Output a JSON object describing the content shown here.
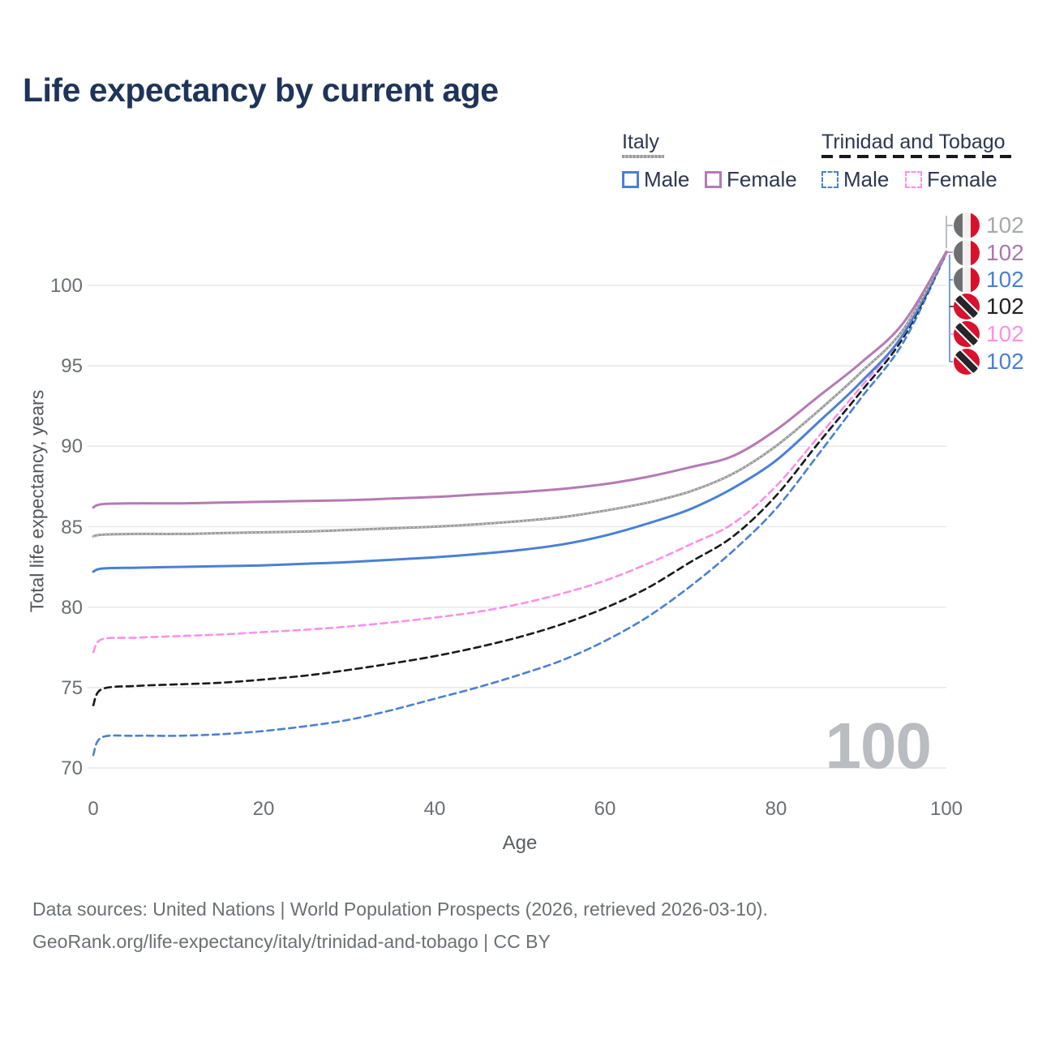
{
  "title": "Life expectancy by current age",
  "legend": {
    "groups": [
      {
        "label": "Italy",
        "line_style": "solid",
        "line_color": "#9b9b9b",
        "items": [
          {
            "label": "Male",
            "color": "#4a80d4"
          },
          {
            "label": "Female",
            "color": "#b57ab4"
          }
        ]
      },
      {
        "label": "Trinidad and Tobago",
        "line_style": "dashed",
        "line_color": "#17191c",
        "items": [
          {
            "label": "Male",
            "color": "#4a80d4"
          },
          {
            "label": "Female",
            "color": "#fc90e8"
          }
        ]
      }
    ]
  },
  "axes": {
    "y": {
      "title": "Total life expectancy, years",
      "ticks": [
        "100",
        "95",
        "90",
        "85",
        "80",
        "75",
        "70"
      ]
    },
    "x": {
      "title": "Age",
      "ticks": [
        "0",
        "20",
        "40",
        "60",
        "80",
        "100"
      ]
    }
  },
  "chart_data": {
    "type": "line",
    "title": "Life expectancy by current age",
    "xlabel": "Age",
    "ylabel": "Total life expectancy, years",
    "xlim": [
      0,
      100
    ],
    "ylim": [
      70,
      102.5
    ],
    "grid": "horizontal",
    "x": [
      0,
      1,
      5,
      10,
      15,
      20,
      25,
      30,
      35,
      40,
      45,
      50,
      55,
      60,
      65,
      70,
      75,
      80,
      85,
      90,
      95,
      100
    ],
    "series": [
      {
        "name": "Trinidad and Tobago Male",
        "country": "Trinidad and Tobago",
        "sex": "Male",
        "style": "dashed",
        "color": "#4a80d4",
        "values": [
          70.8,
          71.9,
          72.0,
          72.0,
          72.1,
          72.3,
          72.6,
          73.0,
          73.6,
          74.3,
          75.0,
          75.8,
          76.7,
          77.9,
          79.4,
          81.3,
          83.5,
          86.1,
          89.5,
          93.0,
          96.5,
          102.0
        ]
      },
      {
        "name": "Trinidad and Tobago Both sexes",
        "country": "Trinidad and Tobago",
        "sex": "Both",
        "style": "dashed",
        "color": "#17191c",
        "values": [
          73.9,
          74.9,
          75.1,
          75.2,
          75.3,
          75.5,
          75.75,
          76.1,
          76.5,
          76.95,
          77.5,
          78.15,
          78.95,
          79.95,
          81.2,
          82.8,
          84.4,
          86.9,
          90.2,
          93.4,
          96.8,
          102.0
        ]
      },
      {
        "name": "Trinidad and Tobago Female",
        "country": "Trinidad and Tobago",
        "sex": "Female",
        "style": "dashed",
        "color": "#fc90e8",
        "values": [
          77.2,
          78.0,
          78.1,
          78.2,
          78.3,
          78.45,
          78.6,
          78.8,
          79.05,
          79.35,
          79.7,
          80.2,
          80.85,
          81.65,
          82.7,
          83.9,
          85.2,
          87.5,
          90.6,
          93.7,
          97.0,
          102.0
        ]
      },
      {
        "name": "Italy Male",
        "country": "Italy",
        "sex": "Male",
        "style": "solid",
        "color": "#4a80d4",
        "values": [
          82.2,
          82.4,
          82.45,
          82.5,
          82.55,
          82.6,
          82.7,
          82.8,
          82.95,
          83.1,
          83.3,
          83.55,
          83.9,
          84.45,
          85.2,
          86.1,
          87.4,
          89.1,
          91.5,
          94.0,
          97.0,
          102.1
        ]
      },
      {
        "name": "Italy Both sexes",
        "country": "Italy",
        "sex": "Both",
        "style": "solid",
        "color": "#9b9b9b",
        "dotted_overlay": true,
        "values": [
          84.4,
          84.5,
          84.55,
          84.55,
          84.6,
          84.65,
          84.7,
          84.8,
          84.9,
          85.0,
          85.15,
          85.35,
          85.6,
          86.0,
          86.5,
          87.2,
          88.3,
          90.0,
          92.2,
          94.6,
          97.3,
          102.1
        ]
      },
      {
        "name": "Italy Female",
        "country": "Italy",
        "sex": "Female",
        "style": "solid",
        "color": "#b57ab4",
        "values": [
          86.2,
          86.4,
          86.45,
          86.45,
          86.5,
          86.55,
          86.6,
          86.65,
          86.75,
          86.85,
          87.0,
          87.15,
          87.35,
          87.65,
          88.1,
          88.7,
          89.4,
          91.0,
          93.1,
          95.2,
          97.7,
          102.1
        ]
      }
    ],
    "legend_position": "top-right",
    "annotation_end_age": 100
  },
  "end_labels": [
    {
      "flag": "italy",
      "series": "Italy Both sexes",
      "value": "102",
      "color": "#a6a8ab"
    },
    {
      "flag": "italy",
      "series": "Italy Female",
      "value": "102",
      "color": "#ad76ae"
    },
    {
      "flag": "italy",
      "series": "Italy Male",
      "value": "102",
      "color": "#4a80d4"
    },
    {
      "flag": "tt",
      "series": "Trinidad and Tobago Both sexes",
      "value": "102",
      "color": "#202124"
    },
    {
      "flag": "tt",
      "series": "Trinidad and Tobago Female",
      "value": "102",
      "color": "#fc90e8"
    },
    {
      "flag": "tt",
      "series": "Trinidad and Tobago Male",
      "value": "102",
      "color": "#4a80d4"
    }
  ],
  "watermark": "100",
  "footer": {
    "line1": "Data sources: United Nations | World Population Prospects (2026, retrieved 2026-03-10).",
    "line2": "GeoRank.org/life-expectancy/italy/trinidad-and-tobago | CC BY"
  }
}
